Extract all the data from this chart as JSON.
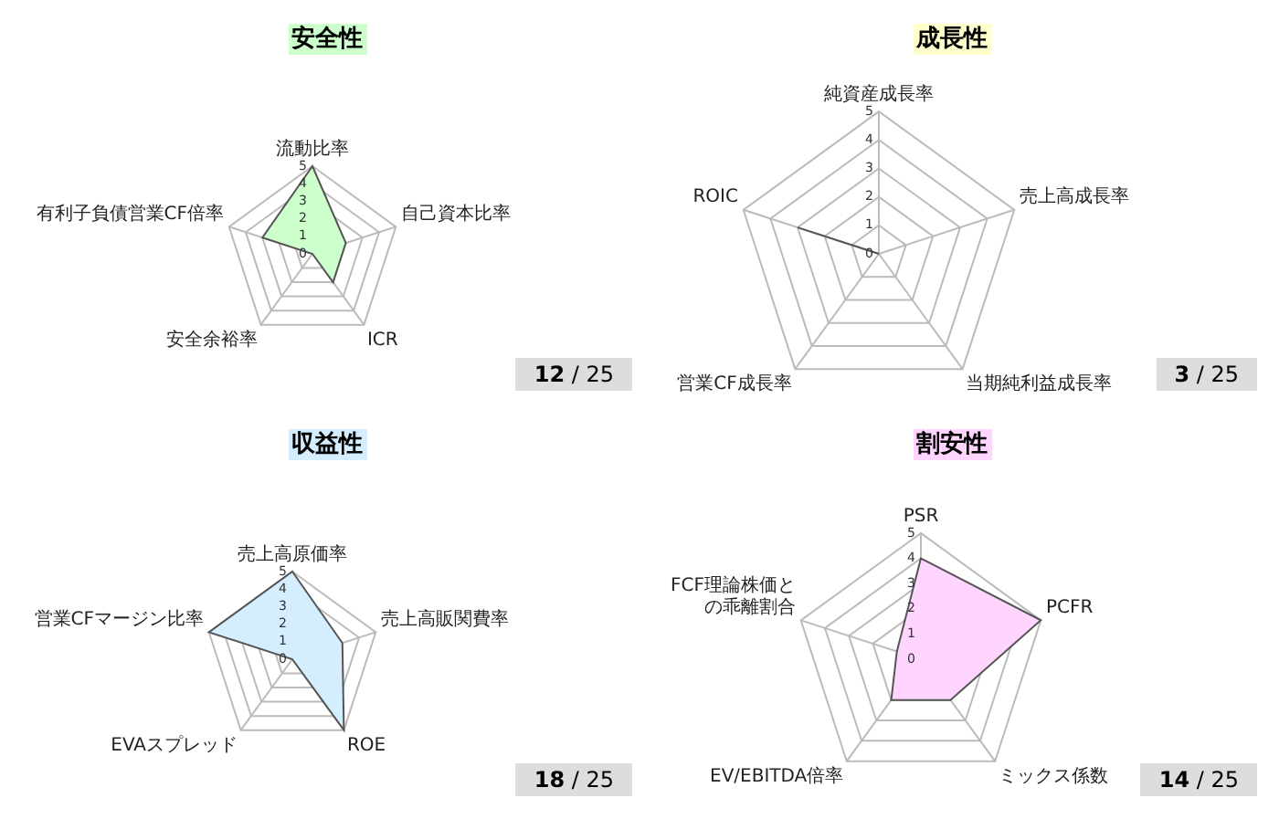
{
  "chart_data": [
    {
      "type": "radar",
      "title": "安全性",
      "categories": [
        "流動比率",
        "自己資本比率",
        "ICR",
        "安全余裕率",
        "有利子負債営業CF倍率"
      ],
      "series": [
        {
          "color": "#ccffcc",
          "values": [
            5,
            2,
            2,
            0,
            3
          ]
        }
      ],
      "ylim": [
        0,
        5
      ],
      "yticks": [
        0,
        1,
        2,
        3,
        4,
        5
      ],
      "grid": true,
      "legend": false,
      "marker": "none",
      "annotations": [
        "12 / 25"
      ]
    },
    {
      "type": "radar",
      "title": "成長性",
      "categories": [
        "純資産成長率",
        "売上高成長率",
        "当期純利益成長率",
        "営業CF成長率",
        "ROIC"
      ],
      "series": [
        {
          "color": "#555555",
          "values": [
            0,
            0,
            0,
            0,
            3
          ]
        }
      ],
      "ylim": [
        0,
        5
      ],
      "yticks": [
        0,
        1,
        2,
        3,
        4,
        5
      ],
      "grid": true,
      "legend": false,
      "marker": "none",
      "annotations": [
        "3 / 25"
      ]
    },
    {
      "type": "radar",
      "title": "収益性",
      "categories": [
        "売上高原価率",
        "売上高販関費率",
        "ROE",
        "EVAスプレッド",
        "営業CFマージン比率"
      ],
      "series": [
        {
          "color": "#d5eeff",
          "values": [
            5,
            3,
            5,
            0,
            5
          ]
        }
      ],
      "ylim": [
        0,
        5
      ],
      "yticks": [
        0,
        1,
        2,
        3,
        4,
        5
      ],
      "grid": true,
      "legend": false,
      "marker": "none",
      "annotations": [
        "18 / 25"
      ]
    },
    {
      "type": "radar",
      "title": "割安性",
      "categories": [
        "PSR",
        "PCFR",
        "ミックス係数",
        "EV/EBITDA倍率",
        "FCF理論株価との乖離割合"
      ],
      "series": [
        {
          "color": "#ffd5ff",
          "values": [
            4,
            5,
            2,
            2,
            1
          ]
        }
      ],
      "ylim": [
        0,
        5
      ],
      "yticks": [
        0,
        1,
        2,
        3,
        4,
        5
      ],
      "grid": true,
      "legend": false,
      "marker": "none",
      "annotations": [
        "14 / 25"
      ]
    }
  ]
}
